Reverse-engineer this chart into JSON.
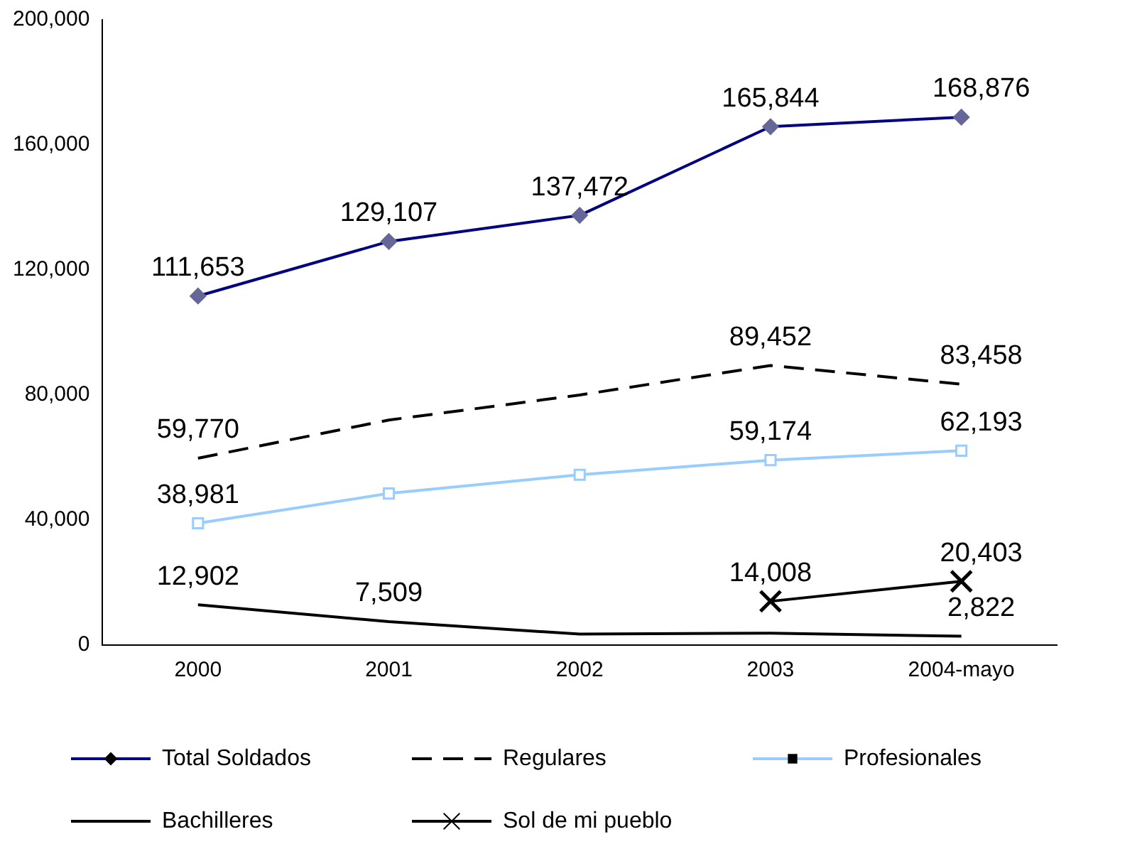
{
  "chart_data": {
    "type": "line",
    "categories": [
      "2000",
      "2001",
      "2002",
      "2003",
      "2004-mayo"
    ],
    "ylim": [
      0,
      200000
    ],
    "yticks": [
      {
        "value": 0,
        "label": "0"
      },
      {
        "value": 40000,
        "label": "40,000"
      },
      {
        "value": 80000,
        "label": "80,000"
      },
      {
        "value": 120000,
        "label": "120,000"
      },
      {
        "value": 160000,
        "label": "160,000"
      },
      {
        "value": 200000,
        "label": "200,000"
      }
    ],
    "grid": false,
    "legend": "bottom",
    "series": [
      {
        "name": "Total Soldados",
        "color": "#000080",
        "marker": "diamond",
        "line_style": "solid",
        "values": [
          111653,
          129107,
          137472,
          165844,
          168876
        ],
        "value_labels": [
          "111,653",
          "129,107",
          "137,472",
          "165,844",
          "168,876"
        ]
      },
      {
        "name": "Regulares",
        "color": "#000000",
        "marker": "none",
        "line_style": "dashed",
        "values": [
          59770,
          72000,
          80000,
          89452,
          83458
        ],
        "value_labels": [
          "59,770",
          null,
          null,
          "89,452",
          "83,458"
        ]
      },
      {
        "name": "Profesionales",
        "color": "#99ccff",
        "marker": "square",
        "line_style": "solid",
        "values": [
          38981,
          48500,
          54500,
          59174,
          62193
        ],
        "value_labels": [
          "38,981",
          null,
          null,
          "59,174",
          "62,193"
        ]
      },
      {
        "name": "Bachilleres",
        "color": "#000000",
        "marker": "none",
        "line_style": "solid",
        "values": [
          12902,
          7509,
          3500,
          3800,
          2822
        ],
        "value_labels": [
          "12,902",
          "7,509",
          null,
          null,
          "2,822"
        ]
      },
      {
        "name": "Sol de mi pueblo",
        "color": "#000000",
        "marker": "cross",
        "line_style": "solid",
        "values": [
          null,
          null,
          null,
          14008,
          20403
        ],
        "value_labels": [
          null,
          null,
          null,
          "14,008",
          "20,403"
        ]
      }
    ]
  }
}
